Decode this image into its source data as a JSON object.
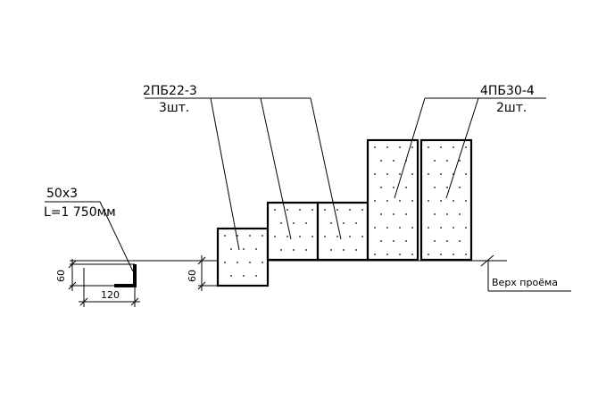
{
  "labels": {
    "angle_section": "50x3",
    "angle_length": "L=1 750мм",
    "lintel_small_mark": "2ПБ22-3",
    "lintel_small_qty": "3шт.",
    "lintel_large_mark": "4ПБ30-4",
    "lintel_large_qty": "2шт.",
    "opening_top": "Верх проёма"
  },
  "dimensions": {
    "angle_height": "60",
    "angle_width": "120",
    "step_height": "60"
  }
}
